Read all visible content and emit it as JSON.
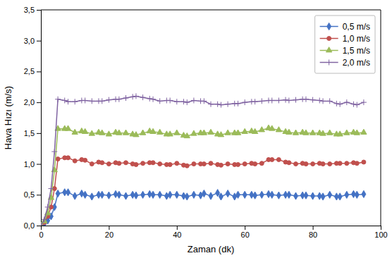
{
  "chart_data": {
    "type": "line",
    "xlabel": "Zaman (dk)",
    "ylabel": "Hava Hızı (m/s)",
    "xlim": [
      0,
      100
    ],
    "ylim": [
      0.0,
      3.5
    ],
    "xticks": [
      0,
      20,
      40,
      60,
      80,
      100
    ],
    "yticks": [
      {
        "value": 0.0,
        "label": "0,0"
      },
      {
        "value": 0.5,
        "label": "0,5"
      },
      {
        "value": 1.0,
        "label": "1,0"
      },
      {
        "value": 1.5,
        "label": "1,5"
      },
      {
        "value": 2.0,
        "label": "2,0"
      },
      {
        "value": 2.5,
        "label": "2,5"
      },
      {
        "value": 3.0,
        "label": "3,0"
      },
      {
        "value": 3.5,
        "label": "3,5"
      }
    ],
    "grid": false,
    "legend": "upper right",
    "x": [
      0,
      1,
      2,
      3,
      4,
      5,
      7,
      8,
      10,
      12,
      13,
      15,
      17,
      18,
      20,
      22,
      23,
      25,
      27,
      28,
      30,
      32,
      33,
      35,
      37,
      38,
      40,
      42,
      43,
      45,
      47,
      48,
      50,
      52,
      53,
      55,
      57,
      58,
      60,
      62,
      63,
      65,
      67,
      68,
      70,
      72,
      73,
      75,
      77,
      78,
      80,
      82,
      83,
      85,
      87,
      88,
      90,
      92,
      93,
      95
    ],
    "series": [
      {
        "name": "0,5 m/s",
        "color": "#4472C4",
        "marker": "diamond",
        "values": [
          0.0,
          0.03,
          0.08,
          0.15,
          0.3,
          0.52,
          0.54,
          0.54,
          0.48,
          0.52,
          0.5,
          0.47,
          0.5,
          0.5,
          0.49,
          0.51,
          0.5,
          0.48,
          0.5,
          0.49,
          0.5,
          0.51,
          0.5,
          0.5,
          0.48,
          0.5,
          0.5,
          0.48,
          0.47,
          0.5,
          0.49,
          0.52,
          0.48,
          0.53,
          0.47,
          0.52,
          0.47,
          0.5,
          0.5,
          0.5,
          0.49,
          0.5,
          0.51,
          0.5,
          0.49,
          0.5,
          0.5,
          0.48,
          0.49,
          0.49,
          0.48,
          0.48,
          0.47,
          0.5,
          0.47,
          0.47,
          0.5,
          0.51,
          0.5,
          0.51
        ]
      },
      {
        "name": "1,0 m/s",
        "color": "#C0504D",
        "marker": "circle",
        "values": [
          0.0,
          0.05,
          0.15,
          0.3,
          0.6,
          1.08,
          1.1,
          1.1,
          1.05,
          1.07,
          1.06,
          1.0,
          1.03,
          1.02,
          1.0,
          1.02,
          1.01,
          1.02,
          1.0,
          0.99,
          1.01,
          1.02,
          1.02,
          1.0,
          0.99,
          0.99,
          1.01,
          0.98,
          0.97,
          1.0,
          1.0,
          1.0,
          1.01,
          0.99,
          0.98,
          1.0,
          0.99,
          0.99,
          1.0,
          1.01,
          1.0,
          1.01,
          1.07,
          1.07,
          1.07,
          1.03,
          1.02,
          1.0,
          1.01,
          1.0,
          1.0,
          1.01,
          1.0,
          1.0,
          1.01,
          1.01,
          1.01,
          1.02,
          1.01,
          1.03
        ]
      },
      {
        "name": "1,5 m/s",
        "color": "#9BBB59",
        "marker": "triangle",
        "values": [
          0.0,
          0.07,
          0.2,
          0.45,
          0.9,
          1.57,
          1.57,
          1.57,
          1.51,
          1.53,
          1.52,
          1.49,
          1.51,
          1.5,
          1.48,
          1.51,
          1.5,
          1.5,
          1.48,
          1.47,
          1.5,
          1.53,
          1.52,
          1.51,
          1.48,
          1.48,
          1.5,
          1.46,
          1.45,
          1.49,
          1.5,
          1.5,
          1.51,
          1.48,
          1.47,
          1.5,
          1.5,
          1.5,
          1.52,
          1.53,
          1.52,
          1.55,
          1.58,
          1.57,
          1.55,
          1.52,
          1.51,
          1.5,
          1.51,
          1.5,
          1.5,
          1.5,
          1.49,
          1.5,
          1.48,
          1.48,
          1.5,
          1.51,
          1.5,
          1.51
        ]
      },
      {
        "name": "2,0 m/s",
        "color": "#8064A2",
        "marker": "plus",
        "values": [
          0.0,
          0.1,
          0.3,
          0.6,
          1.2,
          2.05,
          2.03,
          2.01,
          2.01,
          2.03,
          2.03,
          2.02,
          2.02,
          2.02,
          2.04,
          2.05,
          2.05,
          2.07,
          2.09,
          2.1,
          2.08,
          2.06,
          2.05,
          2.02,
          2.03,
          2.03,
          2.01,
          2.01,
          2.0,
          2.03,
          2.02,
          2.02,
          1.97,
          1.97,
          1.96,
          1.97,
          1.98,
          1.98,
          2.0,
          2.01,
          2.01,
          2.02,
          2.03,
          2.03,
          2.03,
          2.04,
          2.03,
          2.04,
          2.05,
          2.05,
          2.04,
          2.03,
          2.02,
          2.02,
          1.98,
          1.97,
          2.0,
          1.97,
          1.96,
          2.0
        ]
      }
    ]
  }
}
